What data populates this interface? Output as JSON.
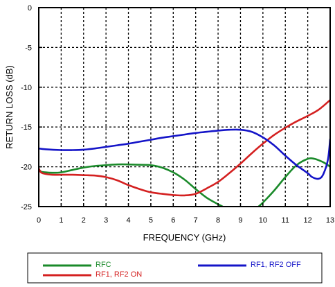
{
  "chart_data": {
    "type": "line",
    "xlabel": "FREQUENCY (GHz)",
    "ylabel": "RETURN LOSS (dB)",
    "xlim": [
      0,
      13
    ],
    "ylim": [
      -25,
      0
    ],
    "xticks": [
      0,
      1,
      2,
      3,
      4,
      5,
      6,
      7,
      8,
      9,
      10,
      11,
      12,
      13
    ],
    "yticks": [
      0,
      -5,
      -10,
      -15,
      -20,
      -25
    ],
    "grid": true,
    "legend_position": "bottom",
    "series": [
      {
        "name": "RFC",
        "color": "#1a8a2a",
        "x": [
          0,
          0.1,
          0.3,
          0.6,
          1,
          1.5,
          2,
          2.5,
          3,
          3.5,
          4,
          4.5,
          5,
          5.5,
          6,
          6.5,
          7,
          7.5,
          8,
          8.2,
          8.3,
          9.6,
          9.8,
          10,
          10.5,
          11,
          11.5,
          12,
          12.3,
          12.6,
          12.8,
          13
        ],
        "y": [
          -20.3,
          -20.6,
          -20.7,
          -20.75,
          -20.7,
          -20.4,
          -20.1,
          -19.9,
          -19.8,
          -19.7,
          -19.7,
          -19.75,
          -19.8,
          -20.1,
          -20.7,
          -21.6,
          -22.8,
          -23.9,
          -24.7,
          -25.0,
          -25.3,
          -25.3,
          -25.0,
          -24.5,
          -23.0,
          -21.3,
          -19.8,
          -19.0,
          -19.0,
          -19.3,
          -19.6,
          -20.0
        ]
      },
      {
        "name": "RF1, RF2 ON",
        "color": "#d42020",
        "x": [
          0,
          0.1,
          0.3,
          0.6,
          1,
          1.5,
          2,
          2.5,
          3,
          3.5,
          4,
          4.5,
          5,
          5.5,
          6,
          6.5,
          7,
          7.5,
          8,
          8.5,
          9,
          9.5,
          10,
          10.5,
          11,
          11.5,
          12,
          12.5,
          13
        ],
        "y": [
          -20.2,
          -20.7,
          -20.9,
          -21.0,
          -21.0,
          -21.0,
          -21.05,
          -21.1,
          -21.3,
          -21.7,
          -22.3,
          -22.8,
          -23.2,
          -23.4,
          -23.55,
          -23.6,
          -23.4,
          -22.7,
          -21.9,
          -20.8,
          -19.6,
          -18.3,
          -17.1,
          -16.0,
          -15.1,
          -14.3,
          -13.6,
          -12.8,
          -11.6
        ]
      },
      {
        "name": "RF1, RF2 OFF",
        "color": "#1414c8",
        "x": [
          0,
          0.3,
          1,
          1.5,
          2,
          2.5,
          3,
          3.5,
          4,
          4.5,
          5,
          5.5,
          6,
          6.5,
          7,
          7.5,
          8,
          8.5,
          9,
          9.5,
          10,
          10.5,
          11,
          11.5,
          12,
          12.2,
          12.5,
          12.7,
          12.9,
          13
        ],
        "y": [
          -17.7,
          -17.8,
          -17.9,
          -17.9,
          -17.85,
          -17.7,
          -17.5,
          -17.3,
          -17.1,
          -16.85,
          -16.6,
          -16.35,
          -16.15,
          -15.95,
          -15.75,
          -15.6,
          -15.45,
          -15.35,
          -15.35,
          -15.6,
          -16.3,
          -17.3,
          -18.6,
          -19.8,
          -20.8,
          -21.3,
          -21.5,
          -20.9,
          -19.1,
          -16.5
        ]
      }
    ]
  }
}
